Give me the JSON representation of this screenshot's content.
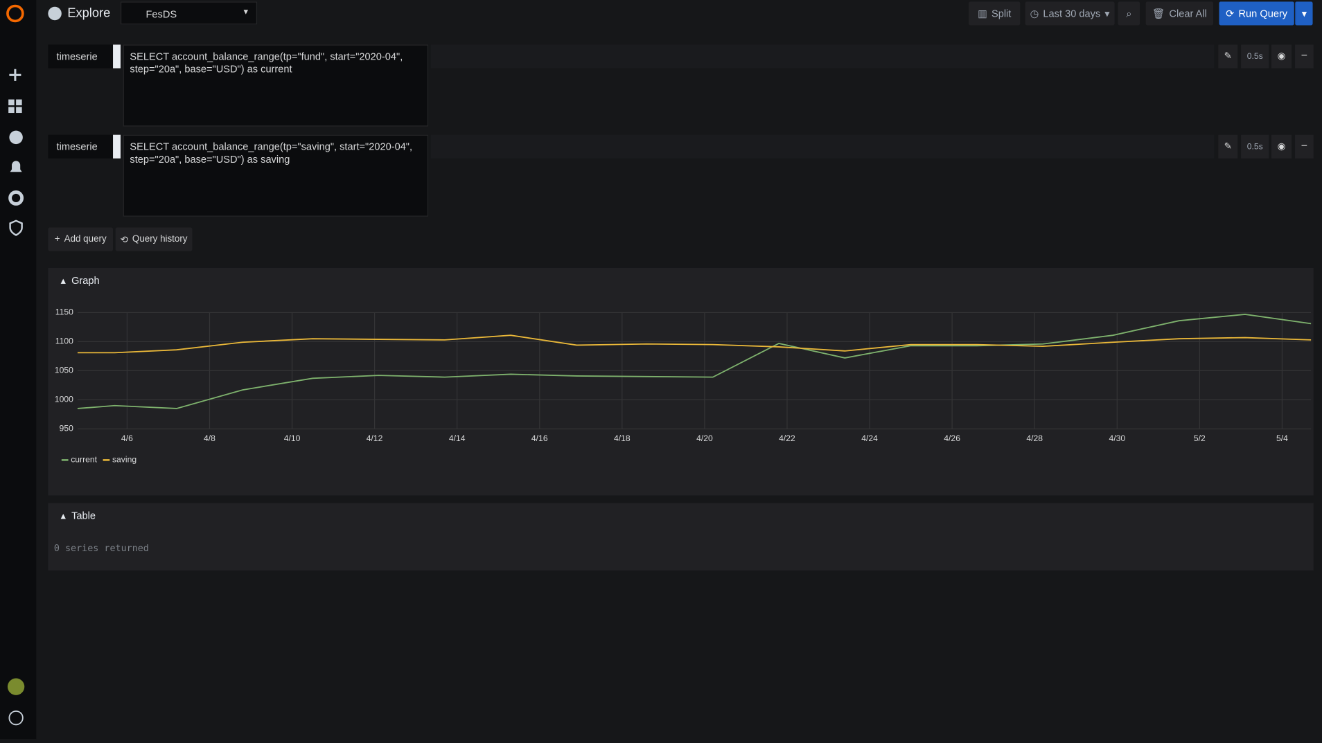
{
  "header": {
    "title": "Explore",
    "datasource": "FesDS",
    "split": "Split",
    "time_range": "Last 30 days",
    "clear": "Clear All",
    "run": "Run Query"
  },
  "queries": [
    {
      "format": "timeserie",
      "query": "SELECT account_balance_range(tp=\"fund\", start=\"2020-04\", step=\"20a\", base=\"USD\") as current",
      "duration": "0.5s"
    },
    {
      "format": "timeserie",
      "query": "SELECT account_balance_range(tp=\"saving\", start=\"2020-04\", step=\"20a\", base=\"USD\") as saving",
      "duration": "0.5s"
    }
  ],
  "actions": {
    "add_query": "Add query",
    "query_history": "Query history"
  },
  "graph": {
    "title": "Graph"
  },
  "chart_data": {
    "type": "line",
    "x": [
      4.8,
      5.7,
      7.2,
      8.8,
      10.5,
      12.1,
      13.7,
      15.3,
      16.9,
      18.6,
      20.2,
      21.8,
      23.4,
      25.0,
      26.6,
      28.2,
      29.9,
      31.5,
      33.1,
      34.7
    ],
    "series": [
      {
        "name": "current",
        "color": "#7eb26d",
        "values": [
          985,
          990,
          985,
          1017,
          1037,
          1042,
          1039,
          1044,
          1041,
          1040,
          1039,
          1097,
          1072,
          1093,
          1093,
          1096,
          1111,
          1136,
          1147,
          1131
        ]
      },
      {
        "name": "saving",
        "color": "#eab839",
        "values": [
          1081,
          1081,
          1086,
          1099,
          1105,
          1104,
          1103,
          1111,
          1094,
          1096,
          1095,
          1091,
          1084,
          1095,
          1095,
          1092,
          1099,
          1105,
          1107,
          1103
        ]
      }
    ],
    "xlim": [
      4.8,
      34.7
    ],
    "xticks": [
      {
        "value": 6,
        "label": "4/6"
      },
      {
        "value": 8,
        "label": "4/8"
      },
      {
        "value": 10,
        "label": "4/10"
      },
      {
        "value": 12,
        "label": "4/12"
      },
      {
        "value": 14,
        "label": "4/14"
      },
      {
        "value": 16,
        "label": "4/16"
      },
      {
        "value": 18,
        "label": "4/18"
      },
      {
        "value": 20,
        "label": "4/20"
      },
      {
        "value": 22,
        "label": "4/22"
      },
      {
        "value": 24,
        "label": "4/24"
      },
      {
        "value": 26,
        "label": "4/26"
      },
      {
        "value": 28,
        "label": "4/28"
      },
      {
        "value": 30,
        "label": "4/30"
      },
      {
        "value": 32,
        "label": "5/2"
      },
      {
        "value": 34,
        "label": "5/4"
      }
    ],
    "ylim": [
      950,
      1150
    ],
    "yticks": [
      950,
      1000,
      1050,
      1100,
      1150
    ],
    "grid": true,
    "legend": "bottom"
  },
  "table": {
    "title": "Table",
    "message": "0 series returned"
  }
}
